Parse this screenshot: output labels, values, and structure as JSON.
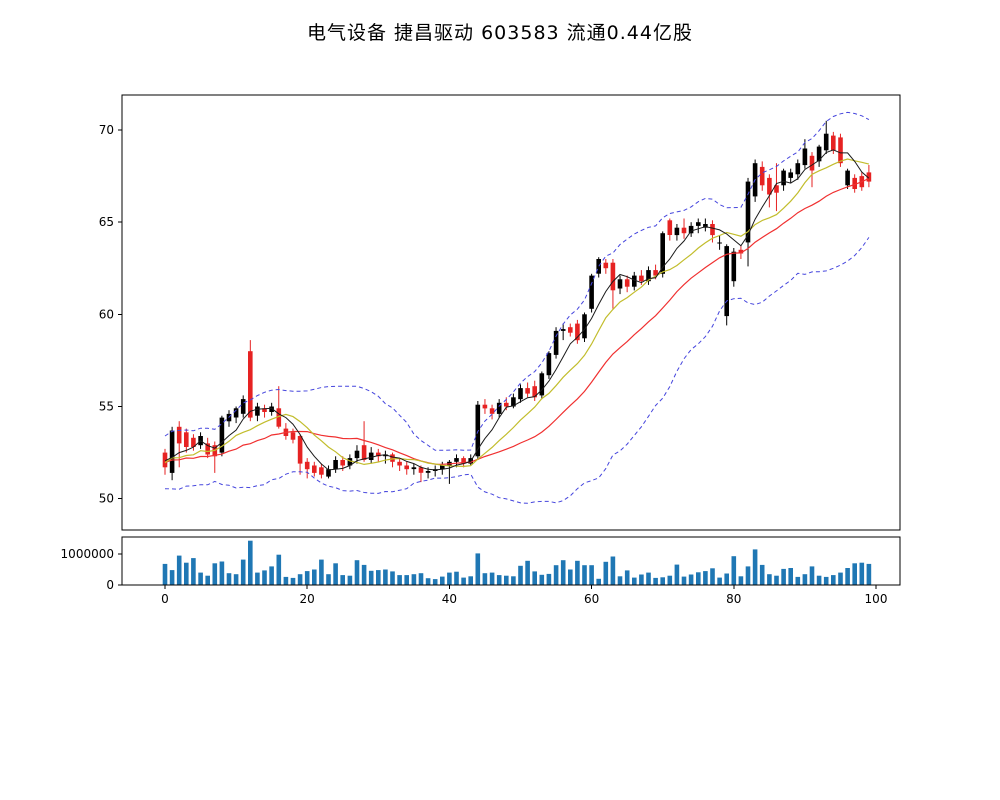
{
  "figure": {
    "title": "电气设备  捷昌驱动  603583  流通0.44亿股",
    "background": "#ffffff"
  },
  "chart_data": {
    "type": "candlestick",
    "title": "电气设备  捷昌驱动  603583  流通0.44亿股",
    "panels": [
      "price",
      "volume"
    ],
    "x_ticks": [
      0,
      20,
      40,
      60,
      80,
      100
    ],
    "price_axis": {
      "ticks": [
        50,
        55,
        60,
        65,
        70
      ],
      "ylim": [
        48.3,
        71.9
      ],
      "grid": false
    },
    "volume_axis": {
      "tick_values": [
        1000000,
        0
      ],
      "tick_labels": [
        "1000000",
        "0"
      ],
      "ylim": [
        0,
        1550000
      ]
    },
    "colors": {
      "up_candle": "#000000",
      "down_candle": "#e62222",
      "ma_fast": "#1a1a1a",
      "ma_mid": "#c2bd2c",
      "ma_slow": "#f03030",
      "bollinger": "#4545dd",
      "volume_bar": "#1f77b4",
      "axis": "#000000"
    },
    "overlays": [
      {
        "name": "ma-fast",
        "type": "sma",
        "period": 5
      },
      {
        "name": "ma-mid",
        "type": "sma",
        "period": 10
      },
      {
        "name": "ma-slow",
        "type": "sma",
        "period": 20
      },
      {
        "name": "bollinger-bands",
        "type": "bollinger",
        "period": 20,
        "k": 2,
        "style": "dashed"
      }
    ],
    "warmup_closes": [
      53.0,
      51.2,
      52.7,
      50.9,
      53.1,
      51.4,
      52.5,
      51.0,
      53.0,
      51.5,
      52.6,
      51.1,
      52.9,
      51.6,
      52.4,
      51.2,
      52.8,
      51.7,
      52.2,
      51.9
    ],
    "series": {
      "open": [
        52.5,
        51.4,
        53.9,
        53.6,
        53.3,
        52.9,
        53.0,
        52.9,
        52.5,
        54.2,
        54.4,
        54.6,
        58.0,
        54.5,
        54.9,
        54.7,
        54.9,
        53.8,
        53.6,
        53.4,
        52.0,
        51.8,
        51.7,
        51.2,
        51.6,
        52.1,
        51.8,
        52.2,
        52.9,
        52.1,
        52.5,
        52.3,
        52.4,
        52.0,
        51.8,
        51.6,
        51.7,
        51.4,
        51.5,
        51.6,
        51.8,
        52.0,
        52.2,
        51.9,
        52.3,
        55.1,
        54.9,
        54.6,
        55.2,
        55.0,
        55.4,
        56.0,
        56.1,
        55.6,
        56.7,
        57.8,
        59.1,
        59.3,
        59.5,
        58.7,
        60.3,
        62.2,
        62.8,
        62.8,
        61.4,
        61.9,
        61.5,
        62.1,
        61.8,
        62.4,
        62.2,
        65.1,
        64.3,
        64.7,
        64.4,
        64.8,
        64.7,
        64.9,
        63.9,
        59.9,
        61.8,
        63.5,
        63.9,
        66.4,
        68.0,
        67.4,
        67.0,
        67.0,
        67.4,
        67.6,
        68.1,
        68.6,
        68.3,
        68.9,
        69.7,
        69.6,
        67.0,
        67.4,
        67.5,
        67.7
      ],
      "high": [
        52.7,
        53.9,
        54.2,
        53.8,
        53.5,
        53.6,
        53.3,
        53.1,
        54.5,
        54.8,
        55.0,
        55.6,
        58.6,
        55.2,
        55.1,
        55.2,
        56.1,
        54.1,
        53.8,
        53.5,
        52.2,
        52.0,
        51.9,
        51.8,
        52.3,
        52.3,
        52.4,
        52.9,
        54.2,
        52.8,
        52.7,
        52.6,
        52.5,
        52.2,
        52.0,
        51.9,
        51.8,
        51.7,
        51.8,
        52.0,
        52.1,
        52.4,
        52.3,
        52.4,
        55.3,
        55.4,
        55.1,
        55.4,
        55.5,
        55.7,
        56.2,
        56.3,
        56.4,
        56.9,
        58.0,
        59.3,
        59.5,
        59.5,
        59.7,
        60.1,
        62.2,
        63.1,
        63.0,
        63.0,
        62.1,
        62.1,
        62.3,
        62.4,
        62.6,
        62.7,
        64.5,
        65.2,
        64.9,
        65.2,
        65.0,
        65.2,
        65.2,
        65.1,
        64.3,
        63.8,
        63.6,
        63.7,
        67.4,
        68.4,
        68.3,
        67.6,
        68.2,
        67.9,
        67.9,
        68.4,
        69.5,
        68.8,
        69.2,
        70.5,
        69.9,
        69.8,
        67.9,
        67.6,
        67.7,
        68.1
      ],
      "low": [
        51.3,
        51.0,
        51.7,
        52.5,
        52.6,
        52.7,
        52.2,
        51.4,
        52.3,
        53.9,
        54.1,
        54.4,
        54.2,
        54.2,
        54.4,
        54.5,
        53.8,
        53.2,
        53.0,
        51.3,
        51.1,
        51.2,
        51.1,
        51.1,
        51.4,
        51.5,
        51.6,
        51.9,
        52.0,
        51.9,
        52.0,
        51.9,
        51.7,
        51.5,
        51.3,
        51.3,
        50.9,
        51.1,
        51.2,
        51.3,
        50.8,
        51.7,
        51.7,
        51.8,
        52.1,
        54.6,
        54.3,
        54.4,
        54.8,
        54.9,
        55.2,
        55.5,
        55.3,
        55.4,
        56.5,
        57.6,
        58.6,
        58.8,
        58.4,
        58.5,
        60.1,
        62.0,
        62.2,
        60.3,
        61.1,
        61.2,
        61.3,
        61.6,
        61.6,
        61.9,
        62.0,
        64.0,
        64.0,
        64.1,
        64.2,
        64.4,
        64.5,
        63.9,
        63.5,
        59.4,
        61.5,
        63.0,
        62.6,
        66.1,
        66.7,
        65.8,
        65.6,
        66.7,
        67.1,
        67.3,
        67.9,
        66.9,
        68.0,
        68.7,
        68.7,
        68.0,
        66.8,
        66.6,
        66.7,
        66.9
      ],
      "close": [
        51.7,
        53.7,
        53.0,
        52.8,
        52.8,
        53.4,
        52.4,
        52.3,
        54.4,
        54.6,
        54.9,
        55.4,
        54.4,
        55.0,
        54.7,
        55.0,
        53.9,
        53.4,
        53.2,
        51.9,
        51.6,
        51.4,
        51.3,
        51.6,
        52.1,
        51.8,
        52.2,
        52.6,
        52.1,
        52.5,
        52.3,
        52.4,
        52.0,
        51.8,
        51.6,
        51.7,
        51.4,
        51.5,
        51.6,
        51.8,
        52.0,
        52.2,
        51.9,
        52.2,
        55.1,
        54.9,
        54.6,
        55.2,
        55.0,
        55.5,
        56.0,
        55.7,
        55.5,
        56.8,
        57.9,
        59.1,
        59.2,
        59.0,
        58.6,
        60.0,
        62.1,
        63.0,
        62.5,
        61.3,
        61.9,
        61.5,
        62.1,
        61.8,
        62.4,
        62.1,
        64.4,
        64.3,
        64.7,
        64.4,
        64.8,
        65.0,
        64.9,
        64.3,
        63.9,
        63.7,
        63.4,
        63.3,
        67.2,
        68.2,
        67.0,
        66.5,
        66.6,
        67.8,
        67.7,
        68.2,
        69.0,
        67.8,
        69.1,
        69.8,
        68.9,
        68.2,
        67.8,
        66.8,
        66.9,
        67.2
      ],
      "volume": [
        680000,
        480000,
        950000,
        720000,
        870000,
        400000,
        300000,
        700000,
        760000,
        380000,
        350000,
        820000,
        1430000,
        400000,
        470000,
        600000,
        980000,
        260000,
        230000,
        350000,
        450000,
        500000,
        820000,
        350000,
        700000,
        320000,
        300000,
        800000,
        650000,
        460000,
        480000,
        500000,
        440000,
        320000,
        320000,
        350000,
        380000,
        220000,
        190000,
        270000,
        400000,
        430000,
        240000,
        280000,
        1020000,
        380000,
        400000,
        320000,
        300000,
        280000,
        620000,
        780000,
        440000,
        330000,
        360000,
        640000,
        800000,
        500000,
        780000,
        640000,
        640000,
        200000,
        750000,
        920000,
        280000,
        470000,
        240000,
        340000,
        400000,
        230000,
        250000,
        300000,
        660000,
        270000,
        340000,
        410000,
        450000,
        540000,
        240000,
        370000,
        930000,
        280000,
        600000,
        1150000,
        650000,
        350000,
        300000,
        520000,
        550000,
        260000,
        350000,
        600000,
        300000,
        260000,
        320000,
        400000,
        550000,
        700000,
        720000,
        680000
      ]
    }
  }
}
